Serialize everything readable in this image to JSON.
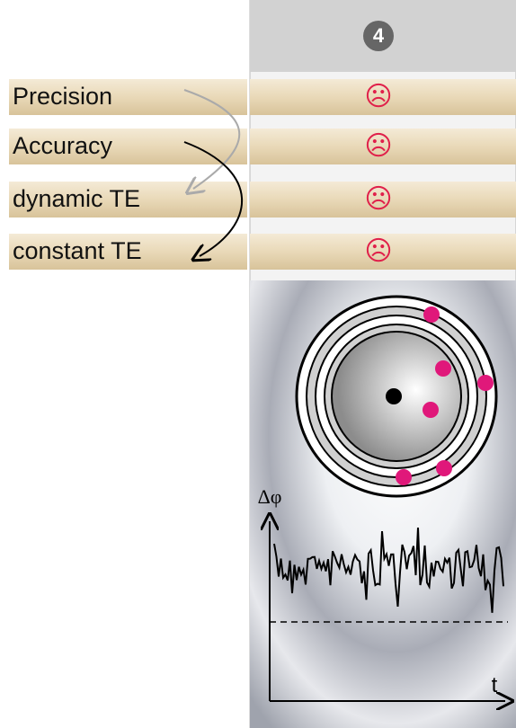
{
  "header": {
    "number": "4"
  },
  "rows": [
    {
      "label": "Precision",
      "status": "☹"
    },
    {
      "label": "Accuracy",
      "status": "☹"
    },
    {
      "label": "dynamic TE",
      "status": "☹"
    },
    {
      "label": "constant TE",
      "status": "☹"
    }
  ],
  "plot": {
    "y_label": "Δφ",
    "x_label": "t"
  }
}
